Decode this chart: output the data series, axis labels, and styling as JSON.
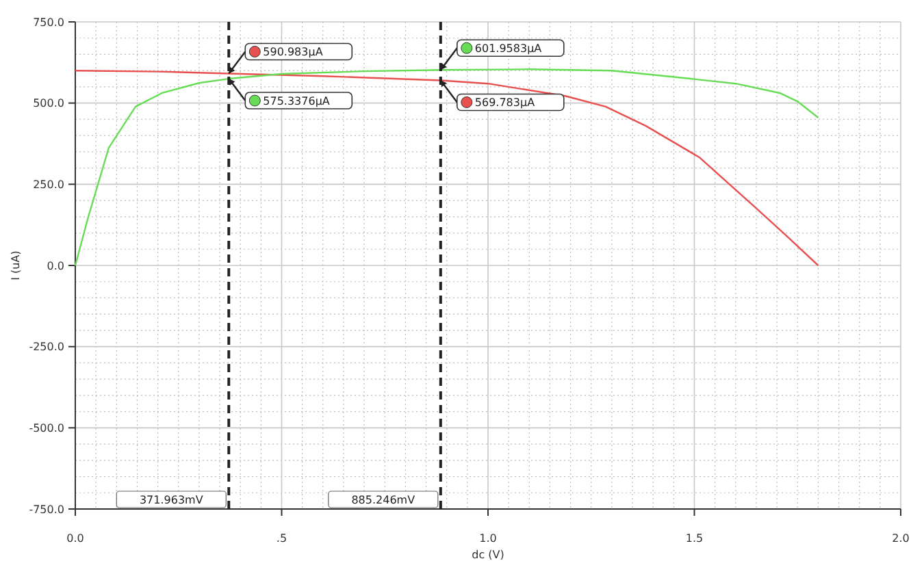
{
  "chart_data": {
    "type": "line",
    "xlabel": "dc (V)",
    "ylabel": "I (uA)",
    "xlim": [
      0,
      2
    ],
    "xticks": [
      {
        "value": 0,
        "label": "0.0"
      },
      {
        "value": 0.5,
        "label": ".5"
      },
      {
        "value": 1,
        "label": "1.0"
      },
      {
        "value": 1.5,
        "label": "1.5"
      },
      {
        "value": 2,
        "label": "2.0"
      }
    ],
    "ylim": [
      -750,
      750
    ],
    "yticks": [
      {
        "value": -750,
        "label": "-750.0"
      },
      {
        "value": -500,
        "label": "-500.0"
      },
      {
        "value": -250,
        "label": "-250.0"
      },
      {
        "value": 0,
        "label": "0.0"
      },
      {
        "value": 250,
        "label": "250.0"
      },
      {
        "value": 500,
        "label": "500.0"
      },
      {
        "value": 750,
        "label": "750.0"
      }
    ],
    "grid": true,
    "marker": "none",
    "line_style": "solid",
    "series": [
      {
        "color": "#e85050",
        "x": [
          0,
          0.2,
          0.372,
          0.6,
          0.885,
          1.0,
          1.187,
          1.285,
          1.382,
          1.512,
          1.642,
          1.72,
          1.8
        ],
        "values": [
          600,
          597,
          591,
          583,
          570,
          560,
          522,
          489,
          430,
          333,
          185,
          95,
          0
        ]
      },
      {
        "color": "#66dd55",
        "x": [
          0,
          0.03,
          0.081,
          0.146,
          0.21,
          0.3,
          0.372,
          0.5,
          0.7,
          0.885,
          1.1,
          1.3,
          1.447,
          1.6,
          1.707,
          1.75,
          1.8
        ],
        "values": [
          0,
          143,
          362,
          489,
          531,
          562,
          575,
          590,
          598,
          602,
          604,
          600,
          581,
          560,
          531,
          505,
          455
        ]
      }
    ],
    "ref_lines": [
      {
        "axis": "x",
        "value": 0.371963,
        "label": "371.963mV",
        "color": "#222222",
        "line_style": "dashed"
      },
      {
        "axis": "x",
        "value": 0.885246,
        "label": "885.246mV",
        "color": "#222222",
        "line_style": "dashed"
      }
    ],
    "annotations": [
      "590.983µA",
      "575.3376µA",
      "601.9583µA",
      "569.783µA"
    ]
  }
}
